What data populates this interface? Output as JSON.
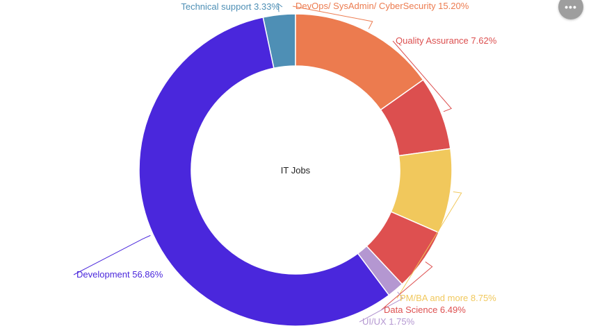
{
  "chart_data": {
    "type": "pie",
    "variant": "donut",
    "center_label": "IT Jobs",
    "slices": [
      {
        "name": "Technical support",
        "value": 3.33,
        "label": "Technical support 3.33%",
        "color": "#4e8fb5"
      },
      {
        "name": "DevOps/ SysAdmin/ CyberSecurity",
        "value": 15.2,
        "label": "DevOps/ SysAdmin/ CyberSecurity 15.20%",
        "color": "#ec7b4f"
      },
      {
        "name": "Quality Assurance",
        "value": 7.62,
        "label": "Quality Assurance 7.62%",
        "color": "#dc4f4f"
      },
      {
        "name": "PM/BA and more",
        "value": 8.75,
        "label": "PM/BA and more 8.75%",
        "color": "#f1c85c"
      },
      {
        "name": "Data Science",
        "value": 6.49,
        "label": "Data Science 6.49%",
        "color": "#de5050"
      },
      {
        "name": "UI/UX",
        "value": 1.75,
        "label": "UI/UX 1.75%",
        "color": "#b497d1"
      },
      {
        "name": "Development",
        "value": 56.86,
        "label": "Development 56.86%",
        "color": "#4a27dc"
      }
    ]
  },
  "menu": {
    "label": "•••"
  }
}
